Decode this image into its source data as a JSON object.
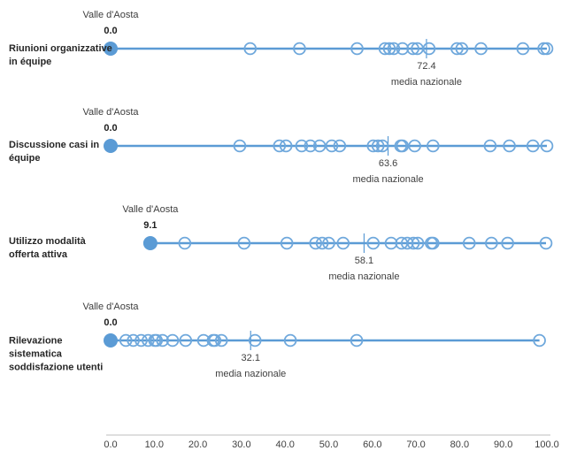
{
  "chart_data": {
    "type": "scatter",
    "subtype": "dot-strip-plot",
    "highlight_name": "Valle d'Aosta",
    "mean_label": "media nazionale",
    "axis": {
      "min": 0,
      "max": 100,
      "tick_values": [
        0,
        10,
        20,
        30,
        40,
        50,
        60,
        70,
        80,
        90,
        100
      ],
      "ticks": [
        "0.0",
        "10.0",
        "20.0",
        "30.0",
        "40.0",
        "50.0",
        "60.0",
        "70.0",
        "80.0",
        "90.0",
        "100.0"
      ]
    },
    "rows": [
      {
        "label": "Riunioni organizzative in équipe",
        "highlight": {
          "value": 0.0,
          "display": "0.0"
        },
        "mean": {
          "value": 72.4,
          "display": "72.4"
        },
        "line": [
          0,
          100
        ],
        "points": [
          32.0,
          43.3,
          56.5,
          62.9,
          63.9,
          64.9,
          66.9,
          69.3,
          70.3,
          73.0,
          79.4,
          80.5,
          84.9,
          94.5,
          99.3,
          100.0
        ]
      },
      {
        "label": "Discussione casi in équipe",
        "highlight": {
          "value": 0.0,
          "display": "0.0"
        },
        "mean": {
          "value": 63.6,
          "display": "63.6"
        },
        "line": [
          0,
          100
        ],
        "points": [
          29.6,
          38.7,
          40.2,
          43.8,
          45.8,
          47.9,
          50.7,
          52.5,
          60.2,
          61.3,
          62.3,
          66.5,
          66.9,
          69.7,
          73.9,
          87.0,
          91.4,
          96.8,
          100.0
        ]
      },
      {
        "label": "Utilizzo modalità offerta attiva",
        "highlight": {
          "value": 9.1,
          "display": "9.1"
        },
        "mean": {
          "value": 58.1,
          "display": "58.1"
        },
        "line": [
          9.1,
          99.8
        ],
        "points": [
          17.0,
          30.6,
          40.4,
          47.0,
          48.5,
          50.0,
          53.3,
          60.2,
          64.3,
          66.7,
          68.0,
          69.4,
          70.4,
          73.5,
          73.9,
          82.2,
          87.3,
          91.0,
          99.8
        ]
      },
      {
        "label": "Rilevazione sistematica soddisfazione utenti",
        "highlight": {
          "value": 0.0,
          "display": "0.0"
        },
        "mean": {
          "value": 32.1,
          "display": "32.1"
        },
        "line": [
          0,
          98.3
        ],
        "points": [
          3.5,
          5.2,
          7.0,
          8.6,
          10.1,
          10.5,
          11.9,
          14.2,
          17.2,
          21.3,
          23.5,
          23.9,
          25.4,
          33.1,
          41.2,
          56.4,
          98.3
        ]
      }
    ],
    "colors": {
      "accent": "#5B9BD5",
      "circle_stroke": "#6FA8DC",
      "axis_line": "#BFBFBF",
      "text": "#404040"
    }
  }
}
